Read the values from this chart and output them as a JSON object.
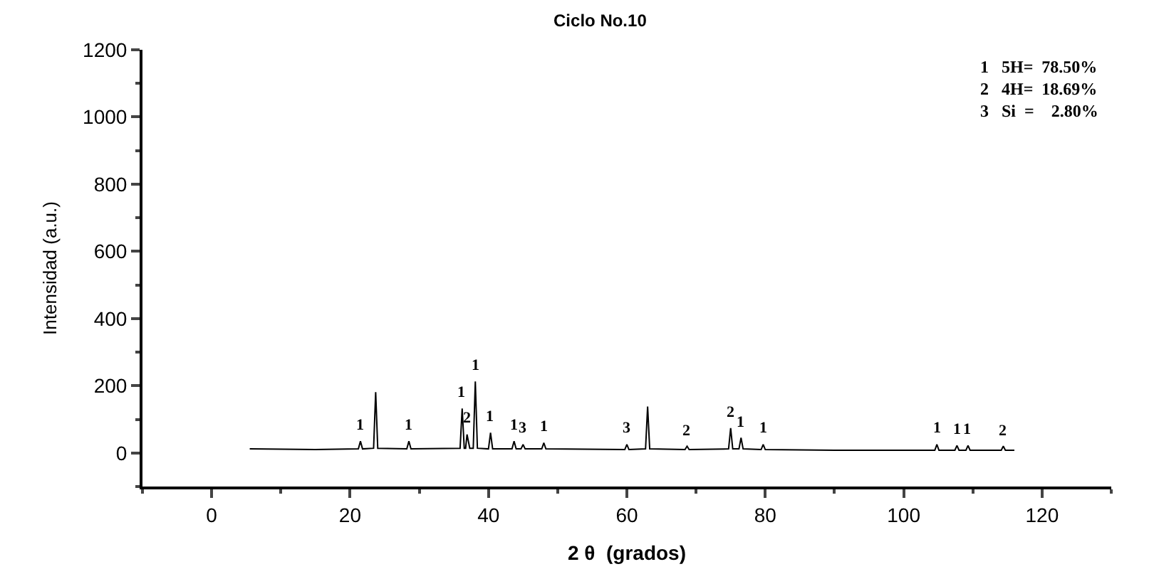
{
  "chart_data": {
    "type": "line",
    "title": "Ciclo No.10",
    "xlabel": "2 θ  (grados)",
    "ylabel": "Intensidad (a.u.)",
    "x": [
      5.5,
      15,
      21.2,
      21.5,
      21.8,
      23.4,
      23.7,
      24.0,
      28.2,
      28.5,
      28.8,
      35.9,
      36.2,
      36.5,
      36.7,
      36.9,
      37.3,
      37.8,
      38.1,
      38.4,
      40.0,
      40.3,
      40.6,
      43.4,
      43.7,
      44.0,
      44.7,
      45.0,
      45.3,
      47.7,
      48.0,
      48.3,
      59.7,
      60.0,
      60.3,
      62.7,
      63.0,
      63.3,
      68.4,
      68.7,
      69.0,
      74.7,
      75.0,
      75.3,
      76.2,
      76.5,
      76.8,
      79.4,
      79.7,
      80.0,
      90,
      104.5,
      104.8,
      105.1,
      107.4,
      107.7,
      108.0,
      109.0,
      109.3,
      109.6,
      114.1,
      114.4,
      114.7,
      116
    ],
    "series": [
      {
        "color": "#000000",
        "values": [
          12,
          10,
          12,
          35,
          12,
          14,
          181,
          14,
          12,
          35,
          12,
          14,
          132,
          14,
          14,
          55,
          14,
          14,
          213,
          14,
          12,
          60,
          12,
          12,
          35,
          12,
          12,
          25,
          12,
          12,
          30,
          12,
          10,
          25,
          10,
          12,
          138,
          12,
          10,
          20,
          10,
          12,
          74,
          12,
          12,
          45,
          12,
          10,
          25,
          10,
          8,
          8,
          25,
          8,
          8,
          22,
          8,
          8,
          22,
          8,
          8,
          20,
          8,
          8
        ]
      }
    ],
    "xlim": [
      -10,
      130
    ],
    "ylim": [
      -100,
      1200
    ],
    "xticks": [
      0,
      20,
      40,
      60,
      80,
      100,
      120
    ],
    "yticks": [
      0,
      200,
      400,
      600,
      800,
      1000,
      1200
    ],
    "legend": false,
    "marker": "none",
    "line_style": "solid",
    "annotations": [
      "1   5H=  78.50%\n2   4H=  18.69%\n3   Si  =    2.80%",
      {
        "text": "1",
        "x": 21.5,
        "y": 35
      },
      {
        "text": "1",
        "x": 28.5,
        "y": 35
      },
      {
        "text": "1",
        "x": 36.2,
        "y": 132
      },
      {
        "text": "1",
        "x": 38.1,
        "y": 213
      },
      {
        "text": "2",
        "x": 36.9,
        "y": 55
      },
      {
        "text": "1",
        "x": 40.3,
        "y": 60
      },
      {
        "text": "1",
        "x": 43.7,
        "y": 35
      },
      {
        "text": "3",
        "x": 45.0,
        "y": 25
      },
      {
        "text": "1",
        "x": 48.0,
        "y": 30
      },
      {
        "text": "3",
        "x": 60.0,
        "y": 25
      },
      {
        "text": "2",
        "x": 68.7,
        "y": 20
      },
      {
        "text": "2",
        "x": 75.0,
        "y": 74
      },
      {
        "text": "1",
        "x": 76.5,
        "y": 45
      },
      {
        "text": "1",
        "x": 79.7,
        "y": 25
      },
      {
        "text": "1",
        "x": 104.8,
        "y": 25
      },
      {
        "text": "1",
        "x": 107.7,
        "y": 22
      },
      {
        "text": "1",
        "x": 109.3,
        "y": 22
      },
      {
        "text": "2",
        "x": 114.4,
        "y": 20
      }
    ]
  }
}
